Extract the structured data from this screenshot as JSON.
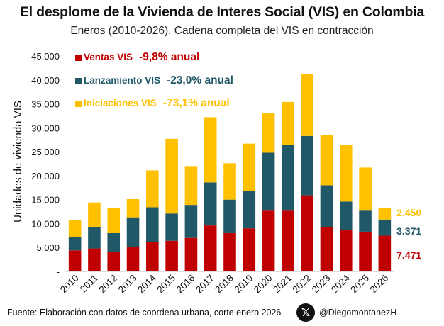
{
  "title": "El desplome de la Vivienda de Interes Social (VIS) en Colombia",
  "subtitle": "Eneros (2010-2026). Cadena completa del VIS en contracción",
  "footer": "Fuente: Elaboración con datos de coordena urbana, corte enero 2026",
  "handle": "@DiegomontanezH",
  "logo_icon": "x-logo-icon",
  "chart_data": {
    "type": "bar",
    "stacked": true,
    "categories": [
      "2010",
      "2011",
      "2012",
      "2013",
      "2014",
      "2015",
      "2016",
      "2017",
      "2018",
      "2019",
      "2020",
      "2021",
      "2022",
      "2023",
      "2024",
      "2025",
      "2026"
    ],
    "ylabel": "Unidades de vivienda VIS",
    "ylim": [
      0,
      45000
    ],
    "yticks": [
      "-",
      "5.000",
      "10.000",
      "15.000",
      "20.000",
      "25.000",
      "30.000",
      "35.000",
      "40.000",
      "45.000"
    ],
    "grid": false,
    "legend_position": "top-left",
    "series": [
      {
        "name": "Ventas VIS",
        "change": "-9,8% anual",
        "color": "#c00000",
        "values": [
          4400,
          4800,
          4100,
          5100,
          6100,
          6400,
          7000,
          9600,
          8000,
          9000,
          12700,
          12700,
          15900,
          9300,
          8600,
          8300,
          7471
        ]
      },
      {
        "name": "Lanzamiento VIS",
        "change": "-23,0% anual",
        "color": "#215868",
        "values": [
          2800,
          4400,
          3900,
          6200,
          7300,
          5700,
          6900,
          9000,
          7000,
          7800,
          12100,
          13700,
          12400,
          8700,
          6000,
          4400,
          3371
        ]
      },
      {
        "name": "Iniciaciones VIS",
        "change": "-73,1% anual",
        "color": "#ffc000",
        "values": [
          3500,
          5200,
          5300,
          3800,
          7700,
          15600,
          8100,
          13600,
          7600,
          9900,
          8200,
          9000,
          13000,
          10500,
          11900,
          9000,
          2450
        ]
      }
    ],
    "annotations": [
      "2.450",
      "3.371",
      "7.471"
    ]
  }
}
